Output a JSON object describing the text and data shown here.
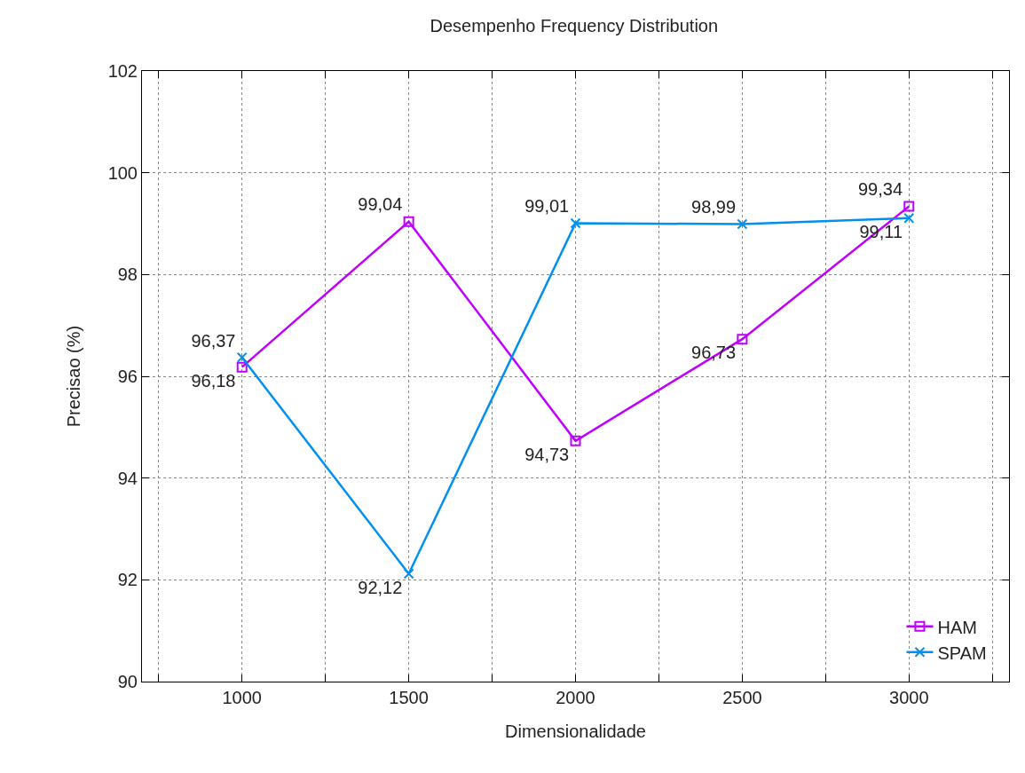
{
  "chart_data": {
    "type": "line",
    "title": "Desempenho Frequency Distribution",
    "xlabel": "Dimensionalidade",
    "ylabel": "Precisao (%)",
    "x": [
      1000,
      1500,
      2000,
      2500,
      3000
    ],
    "series": [
      {
        "name": "HAM",
        "color": "#bf00ff",
        "marker": "square",
        "values": [
          96.18,
          99.04,
          94.73,
          96.73,
          99.34
        ],
        "value_labels": [
          "96,18",
          "99,04",
          "94,73",
          "96,73",
          "99,34"
        ]
      },
      {
        "name": "SPAM",
        "color": "#0090f0",
        "marker": "cross",
        "values": [
          96.37,
          92.12,
          99.01,
          98.99,
          99.11
        ],
        "value_labels": [
          "96,37",
          "92,12",
          "99,01",
          "98,99",
          "99,11"
        ]
      }
    ],
    "xlim": [
      700,
      3300
    ],
    "xticks": [
      {
        "value": 750,
        "label": null
      },
      1000,
      {
        "value": 1250,
        "label": null
      },
      1500,
      {
        "value": 1750,
        "label": null
      },
      2000,
      {
        "value": 2250,
        "label": null
      },
      2500,
      {
        "value": 2750,
        "label": null
      },
      3000,
      {
        "value": 3250,
        "label": null
      }
    ],
    "ylim": [
      90,
      102
    ],
    "yticks": [
      90,
      92,
      94,
      96,
      98,
      100,
      102
    ],
    "grid": true,
    "legend": "bottom right",
    "line_style": "solid"
  }
}
